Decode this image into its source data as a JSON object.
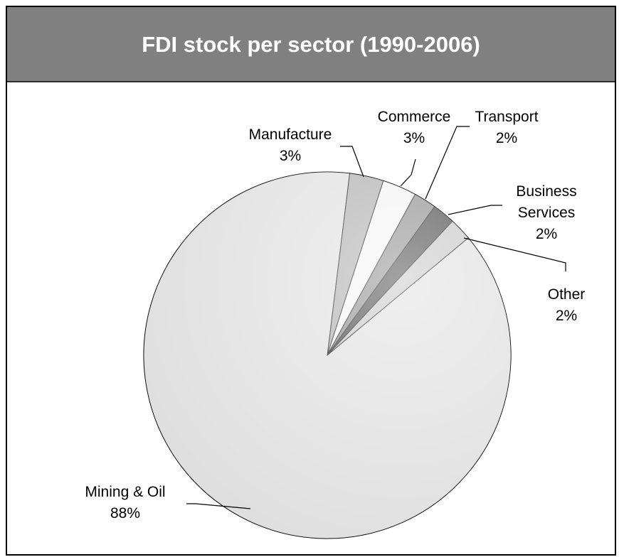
{
  "chart_data": {
    "type": "pie",
    "title": "FDI stock per sector (1990-2006)",
    "categories": [
      "Manufacture",
      "Commerce",
      "Transport",
      "Business Services",
      "Other",
      "Mining & Oil"
    ],
    "values": [
      3,
      3,
      2,
      2,
      2,
      88
    ],
    "value_labels": [
      "3%",
      "3%",
      "2%",
      "2%",
      "2%",
      "88%"
    ],
    "colors": [
      "#a6a6a6",
      "#f2f2f2",
      "#808080",
      "#333333",
      "#bfbfbf",
      "#dcdcdc"
    ]
  }
}
